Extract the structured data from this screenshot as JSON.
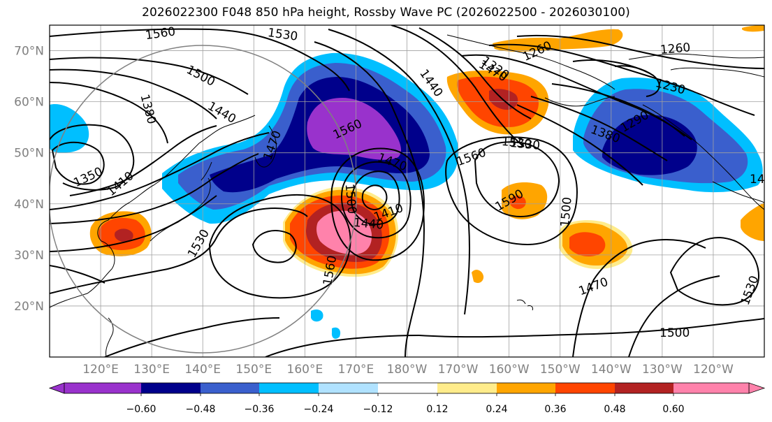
{
  "title": "2026022300 F048 850 hPa height, Rossby Wave PC (2026022500 - 2026030100)",
  "map": {
    "projection": "equirectangular",
    "lon_range": [
      110,
      250
    ],
    "lat_range": [
      10,
      75
    ],
    "lat_labels": [
      "70°N",
      "60°N",
      "50°N",
      "40°N",
      "30°N",
      "20°N"
    ],
    "lon_labels": [
      "120°E",
      "130°E",
      "140°E",
      "150°E",
      "160°E",
      "170°E",
      "180°W",
      "170°W",
      "160°W",
      "150°W",
      "140°W",
      "130°W",
      "120°W"
    ],
    "contour_labels": [
      "1560",
      "1530",
      "1500",
      "1380",
      "1440",
      "1470",
      "1350",
      "1410",
      "1530",
      "1560",
      "1470",
      "1500",
      "1440",
      "1410",
      "1560",
      "1440",
      "1470",
      "1530",
      "1260",
      "1320",
      "1560",
      "1530",
      "1590",
      "1500",
      "1260",
      "1230",
      "1290",
      "1380",
      "1470",
      "1530",
      "1500",
      "14"
    ],
    "colors": {
      "neg_060": "#9932cc",
      "neg_048": "#00008b",
      "neg_036": "#3a5fcd",
      "neg_024": "#00bfff",
      "neg_012": "#b0e2ff",
      "pos_012": "#ffec8b",
      "pos_024": "#ffa500",
      "pos_036": "#ff4500",
      "pos_048": "#b22222",
      "pos_060": "#ff82ab"
    }
  },
  "colorbar": {
    "ticks": [
      "−0.60",
      "−0.48",
      "−0.36",
      "−0.24",
      "−0.12",
      "0.12",
      "0.24",
      "0.36",
      "0.48",
      "0.60"
    ],
    "colors": [
      "#9932cc",
      "#00008b",
      "#3a5fcd",
      "#00bfff",
      "#b0e2ff",
      "#ffffff",
      "#ffec8b",
      "#ffa500",
      "#ff4500",
      "#b22222",
      "#ff82ab"
    ]
  }
}
